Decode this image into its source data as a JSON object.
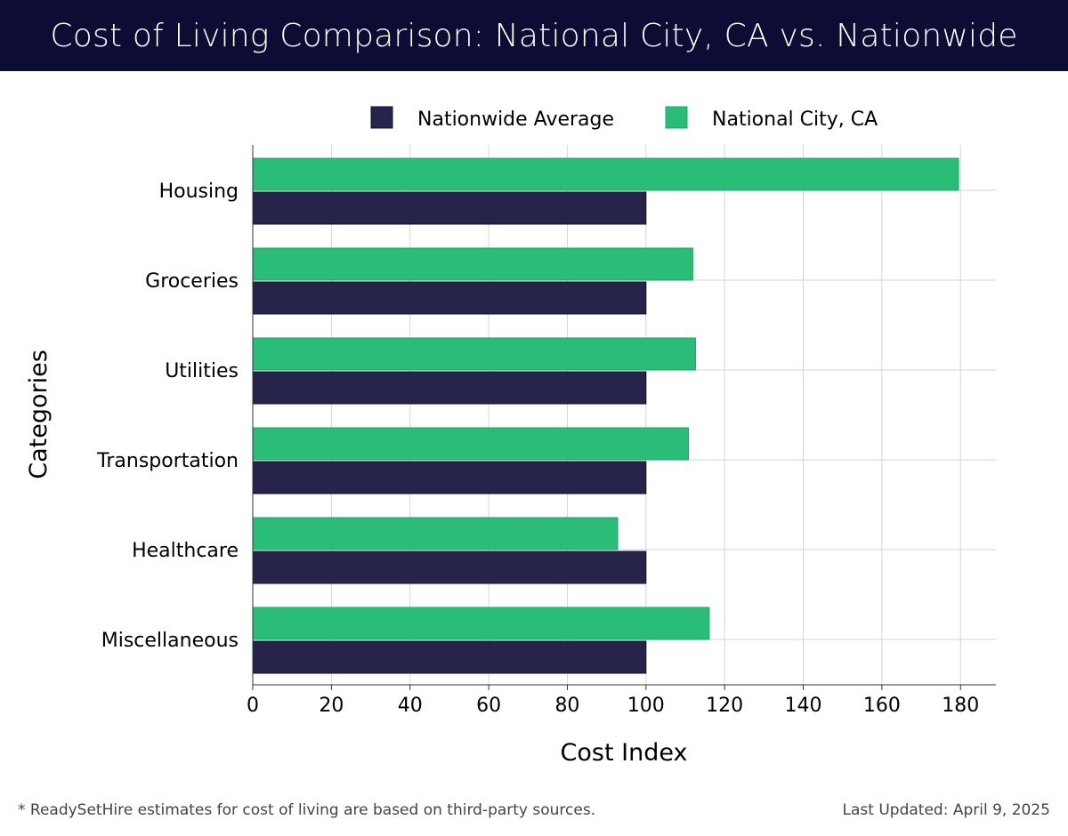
{
  "header": {
    "title": "Cost of Living Comparison: National City, CA vs. Nationwide"
  },
  "chart_data": {
    "type": "bar",
    "orientation": "horizontal",
    "title": "Cost of Living Comparison: National City, CA vs. Nationwide",
    "xlabel": "Cost Index",
    "ylabel": "Categories",
    "xlim": [
      0,
      189
    ],
    "xticks": [
      "0",
      "20",
      "40",
      "60",
      "80",
      "100",
      "120",
      "140",
      "160",
      "180"
    ],
    "grid": true,
    "legend_position": "top",
    "categories": [
      "Housing",
      "Groceries",
      "Utilities",
      "Transportation",
      "Healthcare",
      "Miscellaneous"
    ],
    "series": [
      {
        "name": "Nationwide Average",
        "color": "#26244a",
        "values": [
          100,
          100,
          100,
          100,
          100,
          100
        ]
      },
      {
        "name": "National City, CA",
        "color": "#2abd77",
        "values": [
          179.5,
          111.9,
          112.6,
          110.8,
          92.8,
          116.1
        ]
      }
    ]
  },
  "footer": {
    "note": "* ReadySetHire estimates for cost of living are based on third-party sources.",
    "updated": "Last Updated: April 9, 2025"
  }
}
